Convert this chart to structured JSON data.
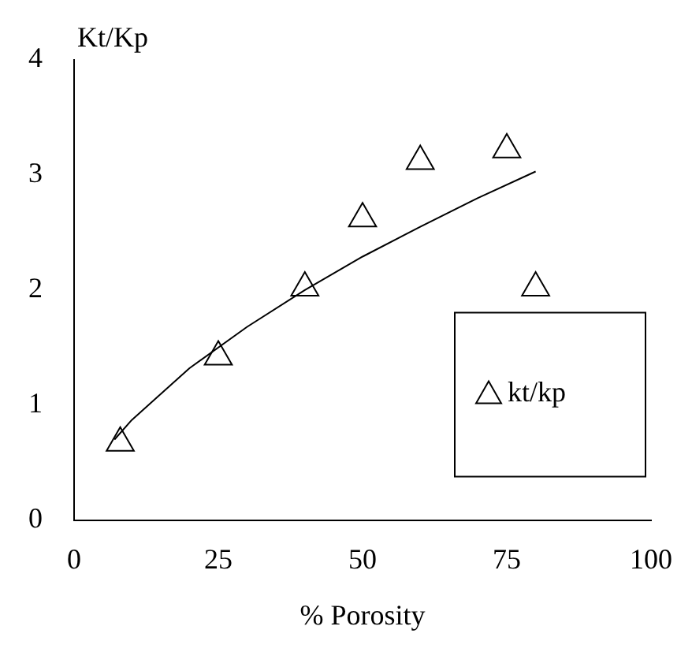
{
  "chart_data": {
    "type": "scatter",
    "xlabel": "% Porosity",
    "ylabel": "Kt/Kp",
    "xlim": [
      0,
      100
    ],
    "xticks": [
      0,
      25,
      50,
      75,
      100
    ],
    "ylim": [
      0,
      4
    ],
    "yticks": [
      0,
      1,
      2,
      3,
      4
    ],
    "grid": false,
    "legend": "bottom right",
    "marker": "triangle",
    "series": [
      {
        "name": "kt/kp",
        "color": "#000000",
        "x": [
          8,
          25,
          40,
          50,
          60,
          75,
          80
        ],
        "values": [
          0.67,
          1.42,
          2.02,
          2.62,
          3.12,
          3.22,
          2.02
        ]
      },
      {
        "type": "line",
        "color": "#000000",
        "line_style": "solid",
        "marker": "none",
        "x": [
          7,
          10,
          20,
          30,
          40,
          50,
          60,
          70,
          80
        ],
        "values": [
          0.7,
          0.87,
          1.32,
          1.68,
          2.0,
          2.29,
          2.55,
          2.8,
          3.03
        ]
      }
    ]
  }
}
